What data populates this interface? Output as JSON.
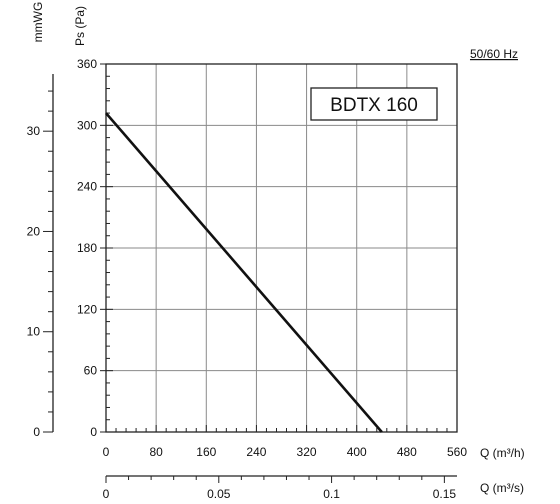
{
  "chart_data": {
    "type": "line",
    "title": "BDTX 160",
    "frequency_label": "50/60 Hz",
    "x_axis": {
      "label": "Q (m³/h)",
      "range": [
        0,
        560
      ],
      "ticks": [
        0,
        80,
        160,
        240,
        320,
        400,
        480,
        560
      ],
      "tick_labels": [
        "0",
        "80",
        "160",
        "240",
        "320",
        "400",
        "480",
        "560"
      ]
    },
    "x2_axis": {
      "label": "Q (m³/s)",
      "range": [
        0,
        0.1556
      ],
      "ticks": [
        0,
        0.05,
        0.1,
        0.15
      ],
      "tick_labels": [
        "0",
        "0.05",
        "0.1",
        "0.15"
      ]
    },
    "y_axis": {
      "label": "Ps (Pa)",
      "range": [
        0,
        360
      ],
      "ticks": [
        0,
        60,
        120,
        180,
        240,
        300,
        360
      ],
      "tick_labels": [
        "0",
        "60",
        "120",
        "180",
        "240",
        "300",
        "360"
      ]
    },
    "y2_axis": {
      "label": "mmWG",
      "range": [
        0,
        36.7
      ],
      "ticks": [
        0,
        10,
        20,
        30
      ],
      "tick_labels": [
        "0",
        "10",
        "20",
        "30"
      ]
    },
    "grid": true,
    "series": [
      {
        "x": [
          0,
          440
        ],
        "y": [
          312,
          0
        ]
      }
    ]
  }
}
